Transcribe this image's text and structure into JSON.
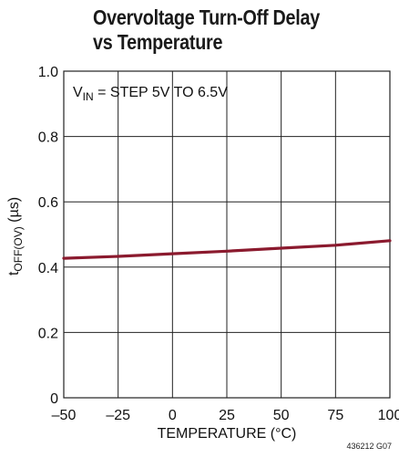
{
  "title_line1": "Overvoltage Turn-Off Delay",
  "title_line2": "vs Temperature",
  "figure_code": "436212 G07",
  "chart_data": {
    "type": "line",
    "title": "Overvoltage Turn-Off Delay vs Temperature",
    "xlabel": "TEMPERATURE (°C)",
    "ylabel": "tOFF(OV) (µs)",
    "ylabel_main": "t",
    "ylabel_sub": "OFF(OV)",
    "ylabel_unit": " (µs)",
    "annotation_main": "V",
    "annotation_sub": "IN",
    "annotation_rest": " = STEP 5V TO 6.5V",
    "xlim": [
      -50,
      100
    ],
    "ylim": [
      0,
      1.0
    ],
    "xticks": [
      -50,
      -25,
      0,
      25,
      50,
      75,
      100
    ],
    "xtick_labels": [
      "–50",
      "–25",
      "0",
      "25",
      "50",
      "75",
      "100"
    ],
    "yticks": [
      0,
      0.2,
      0.4,
      0.6,
      0.8,
      1.0
    ],
    "ytick_labels": [
      "0",
      "0.2",
      "0.4",
      "0.6",
      "0.8",
      "1.0"
    ],
    "grid": true,
    "line_color": "#8b1a2e",
    "series": [
      {
        "x": [
          -50,
          -25,
          0,
          25,
          50,
          75,
          100
        ],
        "y": [
          0.427,
          0.433,
          0.441,
          0.449,
          0.458,
          0.467,
          0.481
        ]
      }
    ]
  }
}
